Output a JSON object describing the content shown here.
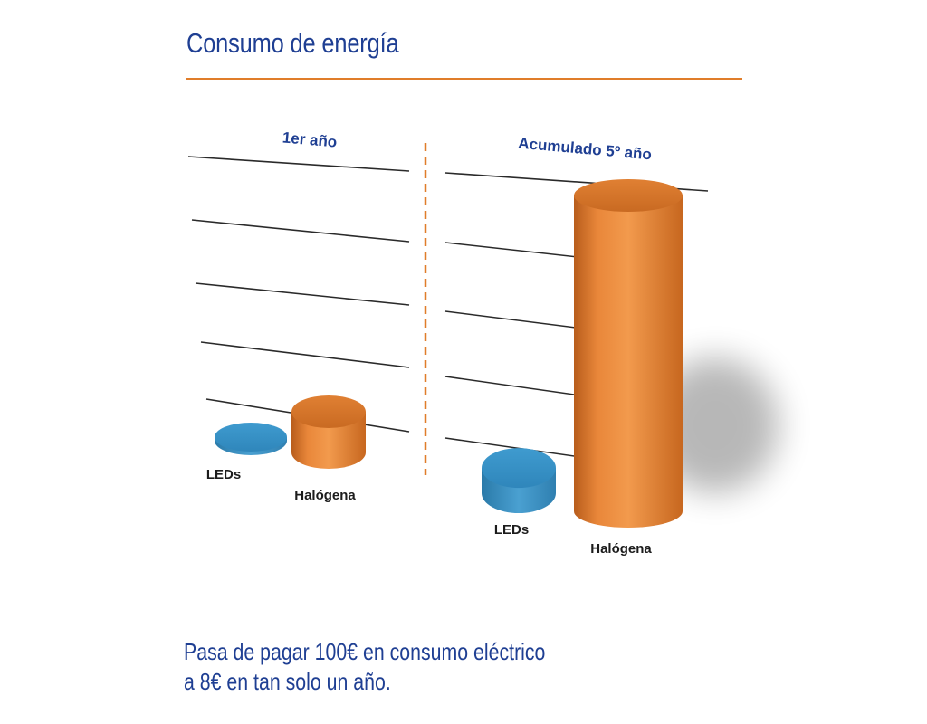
{
  "header": {
    "title": "Consumo de energía"
  },
  "caption": {
    "line1": "Pasa de pagar 100€ en consumo eléctrico",
    "line2": "a 8€ en tan solo un año."
  },
  "colors": {
    "accent": "#e07d2a",
    "title": "#1f3f93",
    "leds": "#3b8fc2",
    "halogena": "#e07d2a"
  },
  "chart_data": [
    {
      "type": "bar",
      "title": "1er año",
      "categories": [
        "LEDs",
        "Halógena"
      ],
      "values": [
        8,
        100
      ],
      "ylim": [
        0,
        600
      ],
      "grid": true,
      "note": "3D cylinder bars"
    },
    {
      "type": "bar",
      "title": "Acumulado 5º año",
      "categories": [
        "LEDs",
        "Halógena"
      ],
      "values": [
        40,
        500
      ],
      "ylim": [
        0,
        550
      ],
      "grid": true,
      "note": "3D cylinder bars"
    }
  ]
}
